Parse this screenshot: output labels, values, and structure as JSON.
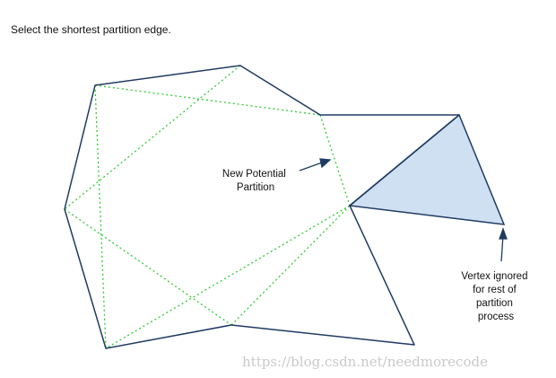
{
  "instruction": "Select the shortest partition edge.",
  "labels": {
    "new_partition": [
      "New Potential",
      "Partition"
    ],
    "vertex_ignored": [
      "Vertex ignored",
      "for rest of",
      "partition",
      "process"
    ]
  },
  "watermark": "https://blog.csdn.net/needmorecode",
  "colors": {
    "outline": "#1f3b63",
    "partition": "#2ecc2e",
    "ignored_fill": "#cfe0f2"
  }
}
